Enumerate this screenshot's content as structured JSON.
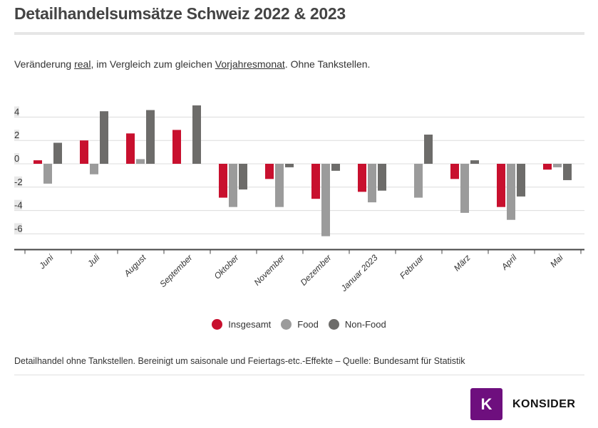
{
  "header": {
    "title": "Detailhandelsumsätze Schweiz 2022 & 2023",
    "subtitle_parts": [
      "Veränderung ",
      "real",
      ", im Vergleich zum gleichen ",
      "Vorjahresmonat",
      ". Ohne Tankstellen."
    ]
  },
  "footer": {
    "source": "Detailhandel ohne Tankstellen. Bereinigt um saisonale und Feiertags-etc.-Effekte – Quelle: Bundesamt für Statistik",
    "logo_letter": "K",
    "logo_text": "KONSIDER"
  },
  "colors": {
    "insgesamt": "#c8102e",
    "food": "#9b9b9b",
    "nonfood": "#6d6c6a",
    "logo": "#6e0f7e"
  },
  "chart_data": {
    "type": "bar",
    "title": "",
    "xlabel": "",
    "ylabel": "",
    "ylim": [
      -7.3,
      5
    ],
    "yticks": [
      4,
      2,
      0,
      -2,
      -4,
      -6
    ],
    "grid": true,
    "legend_position": "bottom",
    "categories": [
      "Juni",
      "Juli",
      "August",
      "September",
      "Oktober",
      "November",
      "Dezember",
      "Januar 2023",
      "Februar",
      "März",
      "April",
      "Mai"
    ],
    "series": [
      {
        "name": "Insgesamt",
        "color": "#c8102e",
        "values": [
          0.3,
          2.0,
          2.6,
          2.9,
          -2.9,
          -1.3,
          -3.0,
          -2.4,
          null,
          -1.3,
          -3.7,
          -0.5
        ]
      },
      {
        "name": "Food",
        "color": "#9b9b9b",
        "values": [
          -1.7,
          -0.9,
          0.4,
          null,
          -3.7,
          -3.7,
          -6.2,
          -3.3,
          -2.9,
          -4.2,
          -4.8,
          -0.3
        ]
      },
      {
        "name": "Non-Food",
        "color": "#6d6c6a",
        "values": [
          1.8,
          4.5,
          4.6,
          5.0,
          -2.2,
          -0.3,
          -0.6,
          -2.3,
          2.5,
          0.3,
          -2.8,
          -1.4
        ]
      }
    ]
  }
}
